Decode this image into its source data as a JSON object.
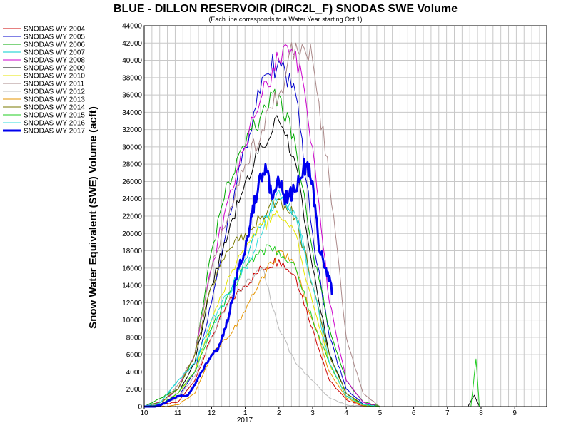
{
  "chart_data": {
    "type": "line",
    "title": "BLUE - DILLON RESERVOIR (DIRC2L_F) SNODAS SWE Volume",
    "subtitle": "(Each line corresponds to a Water Year starting Oct 1)",
    "ylabel": "Snow Water Equivalent (SWE) Volume (acft)",
    "xlabel": "",
    "x_ticks": [
      "10",
      "11",
      "12",
      "1",
      "2",
      "3",
      "4",
      "5",
      "6",
      "7",
      "8",
      "9"
    ],
    "x_year_label": "2017",
    "ylim": [
      0,
      44000
    ],
    "y_ticks": [
      0,
      2000,
      4000,
      6000,
      8000,
      10000,
      12000,
      14000,
      16000,
      18000,
      20000,
      22000,
      24000,
      26000,
      28000,
      30000,
      32000,
      34000,
      36000,
      38000,
      40000,
      42000,
      44000
    ],
    "grid": true,
    "legend_position": "left",
    "series": [
      {
        "name": "SNODAS WY 2004",
        "color": "#cc0000",
        "x": [
          0.0,
          0.5,
          1.0,
          1.5,
          2.0,
          2.5,
          3.0,
          3.5,
          4.0,
          4.5,
          5.0,
          5.5,
          6.0,
          6.5,
          7.0,
          7.5,
          8.0,
          9.0,
          9.95
        ],
        "values": [
          0,
          200,
          500,
          3000,
          8000,
          12000,
          14000,
          16000,
          17000,
          15000,
          9000,
          3000,
          800,
          100,
          0,
          0,
          0,
          0,
          0
        ]
      },
      {
        "name": "SNODAS WY 2005",
        "color": "#0000cc",
        "x": [
          0.0,
          0.5,
          1.0,
          1.5,
          2.0,
          2.5,
          3.0,
          3.5,
          4.0,
          4.5,
          5.0,
          5.5,
          6.0,
          6.5,
          7.0,
          7.5,
          8.0,
          9.0,
          9.95
        ],
        "values": [
          0,
          300,
          1000,
          4000,
          12000,
          22000,
          30000,
          38000,
          40000,
          36000,
          20000,
          8000,
          2000,
          300,
          0,
          0,
          0,
          0,
          0
        ]
      },
      {
        "name": "SNODAS WY 2006",
        "color": "#00aa00",
        "x": [
          0.0,
          0.5,
          1.0,
          1.5,
          2.0,
          2.5,
          3.0,
          3.5,
          4.0,
          4.5,
          5.0,
          5.5,
          6.0,
          6.5,
          7.0,
          7.5,
          8.0,
          9.0,
          9.95
        ],
        "values": [
          0,
          1000,
          2000,
          6000,
          18000,
          26000,
          30000,
          34000,
          36000,
          30000,
          18000,
          9000,
          3000,
          500,
          0,
          0,
          0,
          0,
          0
        ]
      },
      {
        "name": "SNODAS WY 2007",
        "color": "#00cccc",
        "x": [
          0.0,
          0.5,
          1.0,
          1.5,
          2.0,
          2.5,
          3.0,
          3.5,
          4.0,
          4.5,
          5.0,
          5.5,
          6.0,
          6.5,
          7.0,
          7.5,
          8.0,
          9.0,
          9.95
        ],
        "values": [
          0,
          500,
          3000,
          5000,
          9000,
          13000,
          17000,
          21000,
          24000,
          22000,
          14000,
          6000,
          1500,
          200,
          0,
          0,
          0,
          0,
          0
        ]
      },
      {
        "name": "SNODAS WY 2008",
        "color": "#cc00cc",
        "x": [
          0.0,
          0.5,
          1.0,
          1.5,
          2.0,
          2.5,
          3.0,
          3.5,
          4.0,
          4.5,
          5.0,
          5.5,
          6.0,
          6.5,
          7.0,
          7.5,
          8.0,
          9.0,
          9.95
        ],
        "values": [
          0,
          500,
          2000,
          6000,
          16000,
          24000,
          30000,
          36000,
          40000,
          41000,
          30000,
          12000,
          3000,
          500,
          0,
          0,
          0,
          0,
          0
        ]
      },
      {
        "name": "SNODAS WY 2009",
        "color": "#000000",
        "x": [
          0.0,
          0.5,
          1.0,
          1.5,
          2.0,
          2.5,
          3.0,
          3.5,
          4.0,
          4.5,
          5.0,
          5.5,
          6.0,
          6.5,
          7.0,
          7.5,
          8.0,
          9.0,
          9.6,
          9.8,
          9.95
        ],
        "values": [
          0,
          300,
          1500,
          5000,
          14000,
          20000,
          26000,
          30000,
          33000,
          28000,
          16000,
          6000,
          1500,
          200,
          0,
          0,
          0,
          0,
          0,
          1300,
          0
        ]
      },
      {
        "name": "SNODAS WY 2010",
        "color": "#e6e600",
        "x": [
          0.0,
          0.5,
          1.0,
          1.5,
          2.0,
          2.5,
          3.0,
          3.5,
          4.0,
          4.5,
          5.0,
          5.5,
          6.0,
          6.5,
          7.0,
          7.5,
          8.0,
          9.0,
          9.95
        ],
        "values": [
          0,
          200,
          1500,
          4000,
          10000,
          15000,
          18000,
          21000,
          22000,
          20000,
          12000,
          5000,
          1200,
          200,
          0,
          0,
          0,
          0,
          0
        ]
      },
      {
        "name": "SNODAS WY 2011",
        "color": "#aa8888",
        "x": [
          0.0,
          0.5,
          1.0,
          1.5,
          2.0,
          2.5,
          3.0,
          3.5,
          4.0,
          4.5,
          5.0,
          5.5,
          6.0,
          6.5,
          7.0,
          7.5,
          8.0,
          9.0,
          9.95
        ],
        "values": [
          0,
          300,
          2500,
          6000,
          16000,
          22000,
          28000,
          32000,
          36000,
          42000,
          40000,
          26000,
          8000,
          1500,
          0,
          0,
          0,
          0,
          0
        ]
      },
      {
        "name": "SNODAS WY 2012",
        "color": "#bbbbbb",
        "x": [
          0.0,
          0.5,
          1.0,
          1.5,
          2.0,
          2.5,
          3.0,
          3.5,
          4.0,
          4.5,
          5.0,
          5.5,
          6.0,
          6.5,
          7.0,
          7.5,
          8.0,
          9.0,
          9.95
        ],
        "values": [
          0,
          200,
          1000,
          3500,
          8000,
          12000,
          14000,
          16000,
          9000,
          5000,
          3000,
          1000,
          200,
          0,
          0,
          0,
          0,
          0,
          0
        ]
      },
      {
        "name": "SNODAS WY 2013",
        "color": "#e69500",
        "x": [
          0.0,
          0.5,
          1.0,
          1.5,
          2.0,
          2.5,
          3.0,
          3.5,
          4.0,
          4.5,
          5.0,
          5.5,
          6.0,
          6.5,
          7.0,
          7.5,
          8.0,
          9.0,
          9.95
        ],
        "values": [
          0,
          0,
          200,
          1500,
          6000,
          8000,
          11000,
          15000,
          18000,
          16000,
          10000,
          4000,
          1000,
          100,
          0,
          0,
          0,
          0,
          0
        ]
      },
      {
        "name": "SNODAS WY 2014",
        "color": "#7a7a00",
        "x": [
          0.0,
          0.5,
          1.0,
          1.5,
          2.0,
          2.5,
          3.0,
          3.5,
          4.0,
          4.5,
          5.0,
          5.5,
          6.0,
          6.5,
          7.0,
          7.5,
          8.0,
          9.0,
          9.95
        ],
        "values": [
          0,
          500,
          2000,
          6000,
          14000,
          18000,
          20000,
          22000,
          24000,
          22000,
          14000,
          6000,
          1500,
          200,
          0,
          0,
          0,
          0,
          0
        ]
      },
      {
        "name": "SNODAS WY 2015",
        "color": "#22cc22",
        "x": [
          0.0,
          0.5,
          1.0,
          1.5,
          2.0,
          2.5,
          3.0,
          3.5,
          4.0,
          4.5,
          5.0,
          5.5,
          6.0,
          6.5,
          7.0,
          7.5,
          8.0,
          9.0,
          9.7,
          9.85,
          9.95
        ],
        "values": [
          0,
          300,
          1500,
          4000,
          9000,
          13000,
          16000,
          18000,
          18000,
          16000,
          10000,
          5000,
          1200,
          200,
          0,
          0,
          0,
          0,
          0,
          5500,
          0
        ]
      },
      {
        "name": "SNODAS WY 2016",
        "color": "#33dddd",
        "x": [
          0.0,
          0.5,
          1.0,
          1.5,
          2.0,
          2.5,
          3.0,
          3.5,
          4.0,
          4.5,
          5.0,
          5.5,
          6.0,
          6.5,
          7.0,
          7.5,
          8.0,
          9.0,
          9.95
        ],
        "values": [
          0,
          500,
          3000,
          5000,
          10000,
          13000,
          16000,
          20000,
          25000,
          22000,
          14000,
          5000,
          1200,
          200,
          0,
          0,
          0,
          0,
          0
        ]
      },
      {
        "name": "SNODAS WY 2017",
        "color": "#0000ee",
        "bold": true,
        "x": [
          0.0,
          0.3,
          0.5,
          0.8,
          1.0,
          1.3,
          1.5,
          1.7,
          2.0,
          2.2,
          2.4,
          2.6,
          2.8,
          3.0,
          3.2,
          3.4,
          3.6,
          3.8,
          4.0,
          4.2,
          4.4,
          4.6,
          4.8,
          5.0,
          5.2,
          5.4,
          5.6
        ],
        "values": [
          0,
          0,
          200,
          800,
          1200,
          1300,
          2500,
          4000,
          6000,
          6700,
          9000,
          12000,
          16000,
          18000,
          22000,
          26000,
          28000,
          24000,
          26000,
          24000,
          24500,
          26000,
          28000,
          26000,
          18000,
          16000,
          13000
        ]
      }
    ]
  }
}
